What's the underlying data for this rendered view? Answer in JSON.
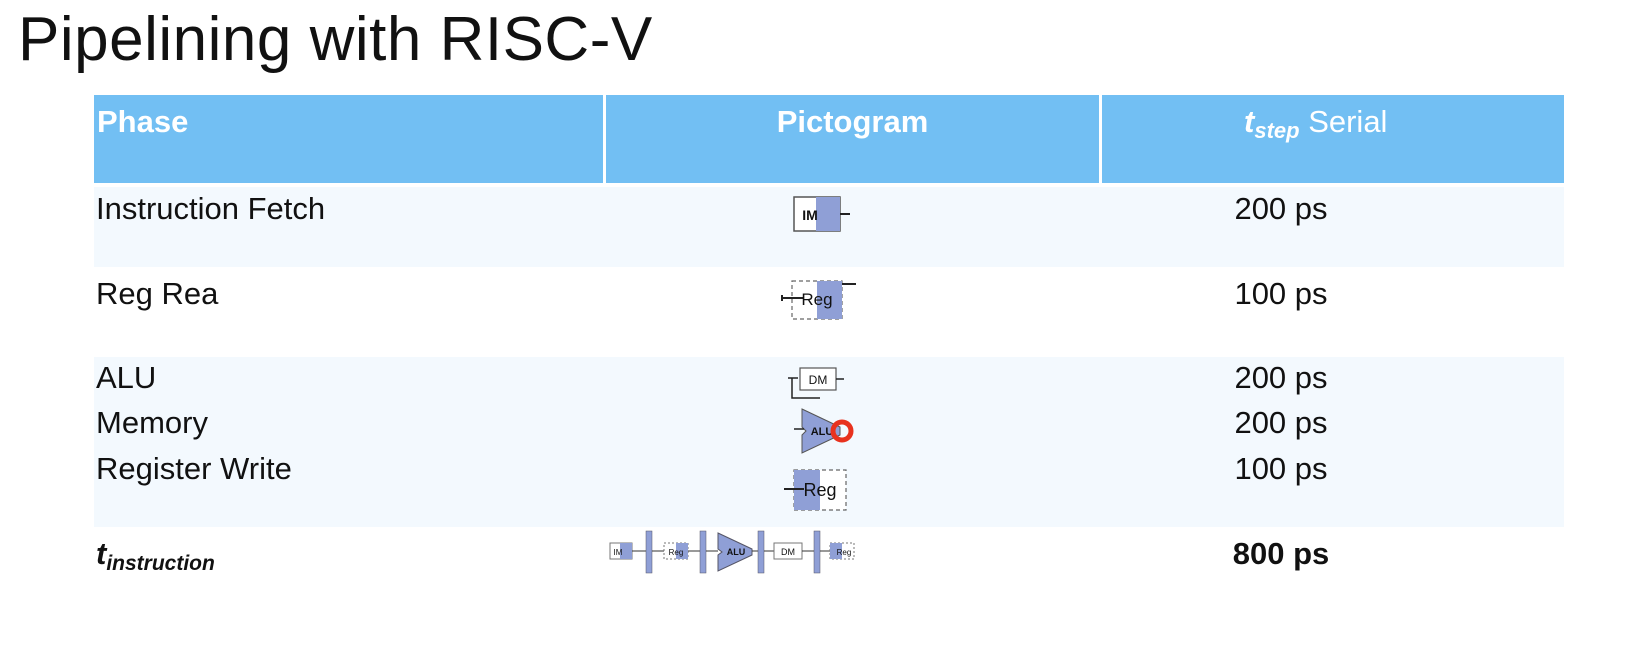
{
  "title": "Pipelining with RISC-V",
  "header": {
    "phase": "Phase",
    "pictogram": "Pictogram",
    "tstep_main": "t",
    "tstep_sub": "step",
    "tstep_suffix": " Serial"
  },
  "rows": [
    {
      "phase": "Instruction Fetch",
      "value": "200 ps",
      "icon": "im-block-icon"
    },
    {
      "phase": "Reg Rea",
      "value": "100 ps",
      "icon": "reg-read-icon"
    },
    {
      "phase": "ALU",
      "value": "200 ps",
      "icon": "dm-block-icon"
    },
    {
      "phase": "Memory",
      "value": "200 ps",
      "icon": "alu-icon"
    },
    {
      "phase": "Register Write",
      "value": "100 ps",
      "icon": "reg-write-icon"
    }
  ],
  "total": {
    "label_main": "t",
    "label_sub": "instruction",
    "value": "800 ps",
    "icon": "pipeline-datapath-icon"
  },
  "pictogram_labels": {
    "im": "IM",
    "reg": "Reg",
    "dm": "DM",
    "alu": "ALU"
  },
  "colors": {
    "header_bg": "#72bff3",
    "row_band": "#f3f9fe",
    "block_fill": "#8f9fd6",
    "pointer": "#e8321e"
  }
}
